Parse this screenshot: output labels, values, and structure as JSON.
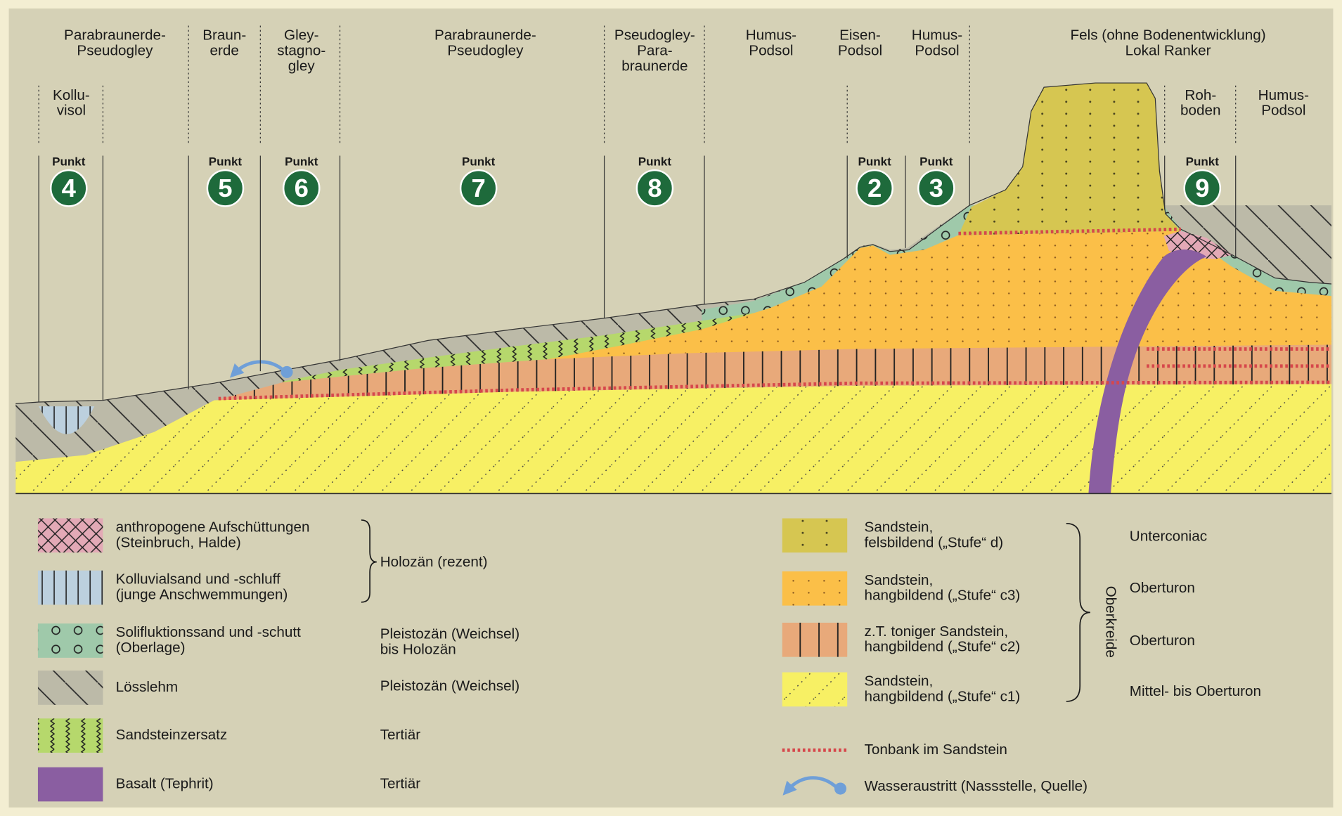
{
  "profile": {
    "soils": [
      {
        "lines": [
          "Parabraunerde-",
          "Pseudogley"
        ]
      },
      {
        "lines": [
          "Braun-",
          "erde"
        ]
      },
      {
        "lines": [
          "Gley-",
          "stagno-",
          "gley"
        ]
      },
      {
        "lines": [
          "Parabraunerde-",
          "Pseudogley"
        ]
      },
      {
        "lines": [
          "Pseudogley-",
          "Para-",
          "braunerde"
        ]
      },
      {
        "lines": [
          "Humus-",
          "Podsol"
        ]
      },
      {
        "lines": [
          "Eisen-",
          "Podsol"
        ]
      },
      {
        "lines": [
          "Humus-",
          "Podsol"
        ]
      },
      {
        "lines": [
          "Fels (ohne Bodenentwicklung)",
          "Lokal Ranker"
        ]
      },
      {
        "lines": [
          "Kollu-",
          "visol"
        ]
      },
      {
        "lines": [
          "Roh-",
          "boden"
        ]
      },
      {
        "lines": [
          "Humus-",
          "Podsol"
        ]
      }
    ],
    "points": [
      {
        "label": "Punkt",
        "number": "4"
      },
      {
        "label": "Punkt",
        "number": "5"
      },
      {
        "label": "Punkt",
        "number": "6"
      },
      {
        "label": "Punkt",
        "number": "7"
      },
      {
        "label": "Punkt",
        "number": "8"
      },
      {
        "label": "Punkt",
        "number": "2"
      },
      {
        "label": "Punkt",
        "number": "3"
      },
      {
        "label": "Punkt",
        "number": "9"
      }
    ]
  },
  "legend": {
    "deposits": [
      {
        "lines": [
          "anthropogene Aufschüttungen",
          "(Steinbruch, Halde)"
        ]
      },
      {
        "lines": [
          "Kolluvialsand und -schluff",
          "(junge Anschwemmungen)"
        ]
      },
      {
        "lines": [
          "Solifluktionssand und -schutt",
          "(Oberlage)"
        ]
      },
      {
        "lines": [
          "Lösslehm"
        ]
      },
      {
        "lines": [
          "Sandsteinzersatz"
        ]
      },
      {
        "lines": [
          "Basalt (Tephrit)"
        ]
      }
    ],
    "deposit_ages": [
      {
        "lines": [
          "Holozän (rezent)"
        ]
      },
      {
        "lines": [
          "Pleistozän (Weichsel)",
          "bis Holozän"
        ]
      },
      {
        "lines": [
          "Pleistozän (Weichsel)"
        ]
      },
      {
        "lines": [
          "Tertiär"
        ]
      },
      {
        "lines": [
          "Tertiär"
        ]
      }
    ],
    "sandstones": [
      {
        "lines": [
          "Sandstein,",
          "felsbildend („Stufe“ d)"
        ]
      },
      {
        "lines": [
          "Sandstein,",
          "hangbildend („Stufe“ c3)"
        ]
      },
      {
        "lines": [
          "z.T. toniger Sandstein,",
          "hangbildend („Stufe“ c2)"
        ]
      },
      {
        "lines": [
          "Sandstein,",
          "hangbildend („Stufe“ c1)"
        ]
      }
    ],
    "sandstone_ages": [
      "Unterconiac",
      "Oberturon",
      "Oberturon",
      "Mittel- bis Oberturon"
    ],
    "group": "Oberkreide",
    "symbols": [
      "Tonbank im Sandstein",
      "Wasseraustritt (Nassstelle, Quelle)"
    ]
  }
}
